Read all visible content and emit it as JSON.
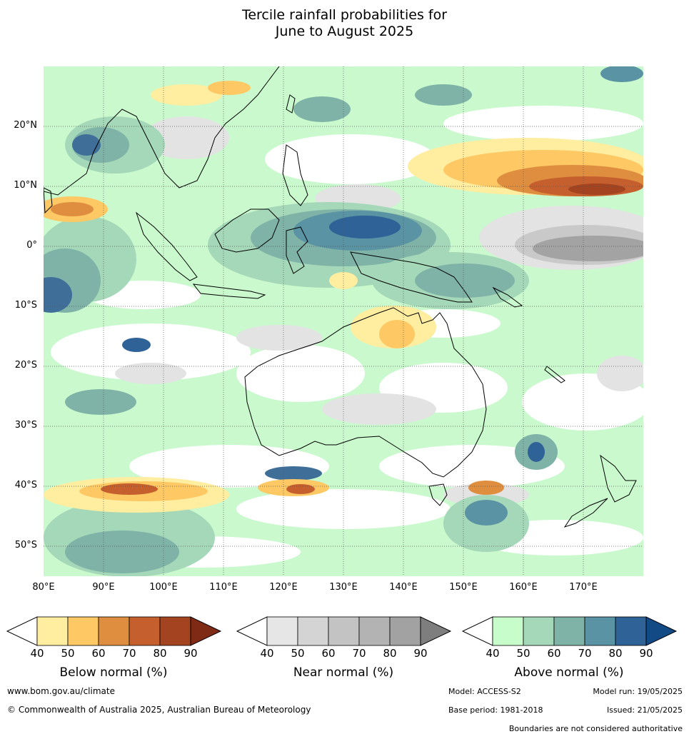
{
  "title": {
    "line1": "Tercile rainfall probabilities for",
    "line2": "June to August 2025"
  },
  "map": {
    "lat_ticks": [
      "20°N",
      "10°N",
      "0°",
      "10°S",
      "20°S",
      "30°S",
      "40°S",
      "50°S"
    ],
    "lon_ticks": [
      "80°E",
      "90°E",
      "100°E",
      "110°E",
      "120°E",
      "130°E",
      "140°E",
      "150°E",
      "160°E",
      "170°E"
    ],
    "extent": {
      "lon": [
        80,
        180
      ],
      "lat": [
        -55,
        30
      ]
    },
    "grid": true
  },
  "legends": [
    {
      "title": "Below normal (%)",
      "ticks": [
        "40",
        "50",
        "60",
        "70",
        "80",
        "90"
      ],
      "colors": [
        "#ffffff",
        "#ffeda0",
        "#fec964",
        "#df8e40",
        "#c65f2e",
        "#a3431f",
        "#7f2a14"
      ]
    },
    {
      "title": "Near normal (%)",
      "ticks": [
        "40",
        "50",
        "60",
        "70",
        "80",
        "90"
      ],
      "colors": [
        "#ffffff",
        "#e6e6e6",
        "#d4d4d4",
        "#c3c3c3",
        "#b3b3b3",
        "#a2a2a2",
        "#7e7e7e"
      ]
    },
    {
      "title": "Above normal (%)",
      "ticks": [
        "40",
        "50",
        "60",
        "70",
        "80",
        "90"
      ],
      "colors": [
        "#ffffff",
        "#c7fccb",
        "#a5d8b8",
        "#7fb3a7",
        "#5a93a3",
        "#2f6297",
        "#124a86"
      ]
    }
  ],
  "footer": {
    "url": "www.bom.gov.au/climate",
    "copyright": "© Commonwealth of Australia 2025, Australian Bureau of Meteorology",
    "model": "Model: ACCESS-S2",
    "model_run": "Model run: 19/05/2025",
    "base_period": "Base period: 1981-2018",
    "issued": "Issued: 21/05/2025",
    "disclaimer": "Boundaries are not considered authoritative"
  }
}
